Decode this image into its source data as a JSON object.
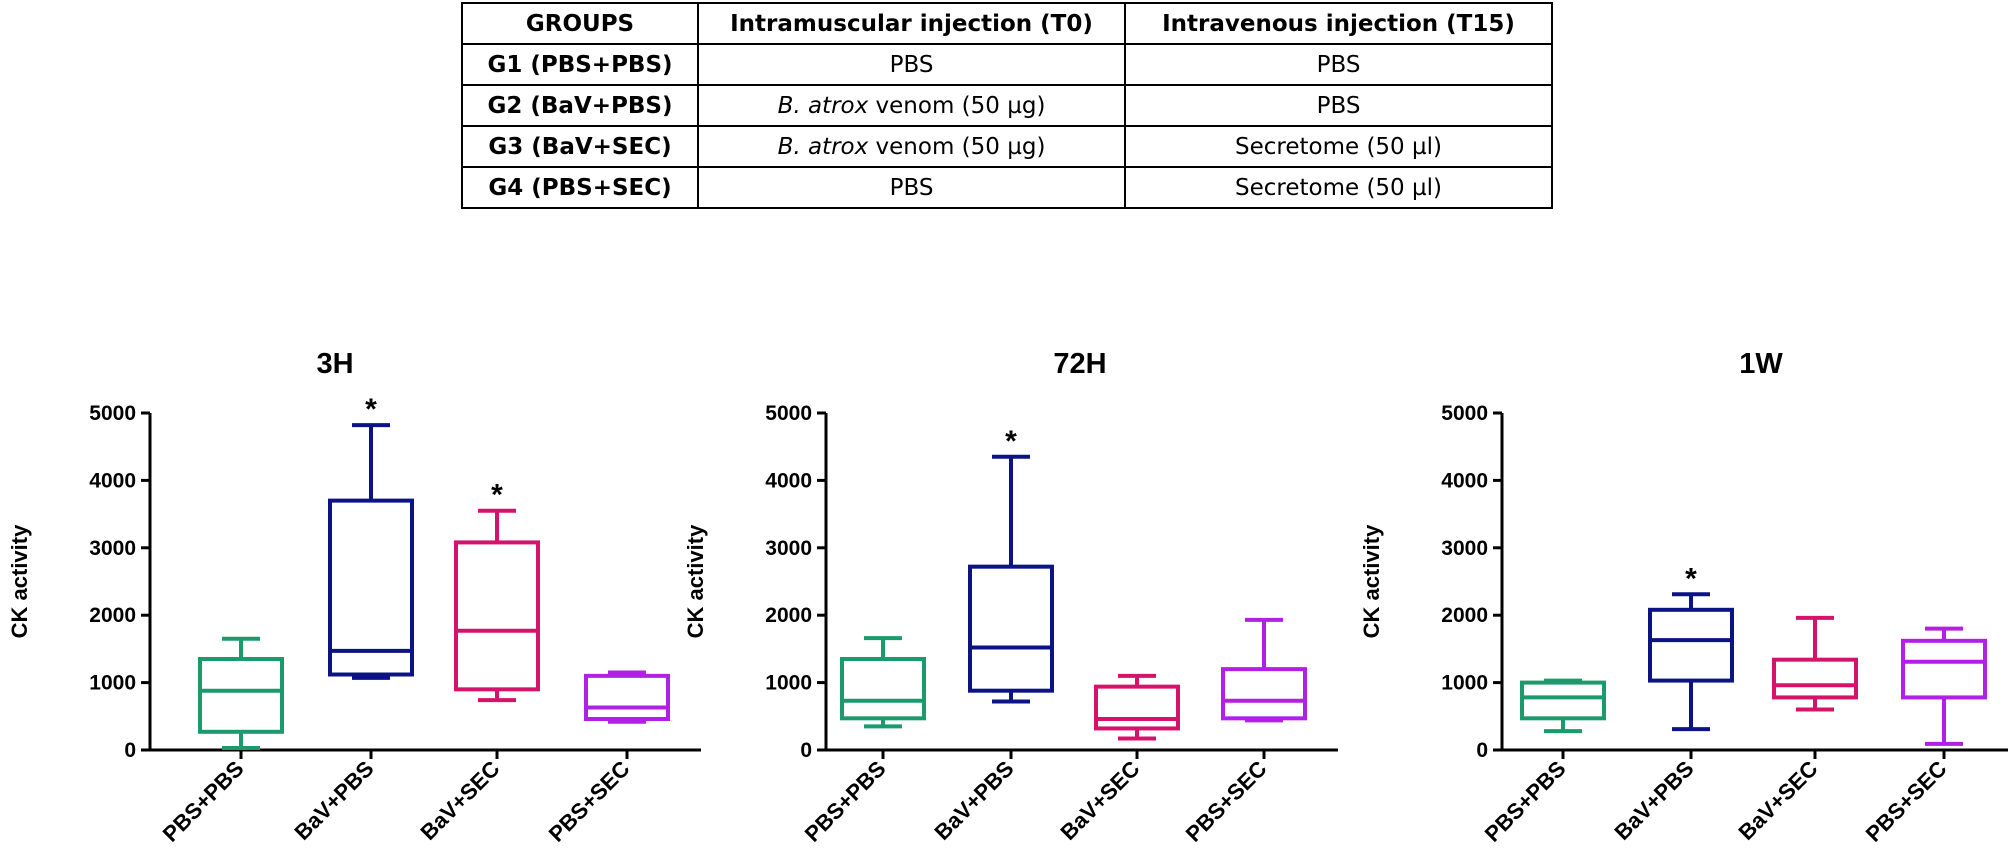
{
  "table": {
    "headers": [
      "GROUPS",
      "Intramuscular injection (T0)",
      "Intravenous injection (T15)"
    ],
    "rows": [
      {
        "group": "G1 (PBS+PBS)",
        "t0_italic": "",
        "t0_rest": "PBS",
        "t15": "PBS"
      },
      {
        "group": "G2 (BaV+PBS)",
        "t0_italic": "B. atrox",
        "t0_rest": " venom (50 µg)",
        "t15": "PBS"
      },
      {
        "group": "G3 (BaV+SEC)",
        "t0_italic": "B. atrox",
        "t0_rest": " venom (50 µg)",
        "t15": "Secretome (50 µl)"
      },
      {
        "group": "G4 (PBS+SEC)",
        "t0_italic": "",
        "t0_rest": "PBS",
        "t15": "Secretome (50 µl)"
      }
    ]
  },
  "colors": {
    "PBS+PBS": "#1b9a6c",
    "BaV+PBS": "#0b1385",
    "BaV+SEC": "#d6136b",
    "PBS+SEC": "#b21fe6"
  },
  "chart_data": [
    {
      "type": "box",
      "title": "3H",
      "ylabel": "CK activity",
      "ylim": [
        0,
        5000
      ],
      "yticks": [
        "0",
        "1000",
        "2000",
        "3000",
        "4000",
        "5000"
      ],
      "categories": [
        "PBS+PBS",
        "BaV+PBS",
        "BaV+SEC",
        "PBS+SEC"
      ],
      "boxes": [
        {
          "min": 30,
          "q1": 270,
          "median": 880,
          "q3": 1350,
          "max": 1650,
          "significant": false
        },
        {
          "min": 1070,
          "q1": 1120,
          "median": 1470,
          "q3": 3700,
          "max": 4820,
          "significant": true
        },
        {
          "min": 740,
          "q1": 900,
          "median": 1770,
          "q3": 3080,
          "max": 3550,
          "significant": true
        },
        {
          "min": 420,
          "q1": 460,
          "median": 630,
          "q3": 1100,
          "max": 1150,
          "significant": false
        }
      ],
      "significance_marker": "*"
    },
    {
      "type": "box",
      "title": "72H",
      "ylabel": "CK activity",
      "ylim": [
        0,
        5000
      ],
      "yticks": [
        "0",
        "1000",
        "2000",
        "3000",
        "4000",
        "5000"
      ],
      "categories": [
        "PBS+PBS",
        "BaV+PBS",
        "BaV+SEC",
        "PBS+SEC"
      ],
      "boxes": [
        {
          "min": 350,
          "q1": 470,
          "median": 730,
          "q3": 1350,
          "max": 1660,
          "significant": false
        },
        {
          "min": 720,
          "q1": 880,
          "median": 1520,
          "q3": 2720,
          "max": 4350,
          "significant": true
        },
        {
          "min": 170,
          "q1": 320,
          "median": 460,
          "q3": 940,
          "max": 1100,
          "significant": false
        },
        {
          "min": 440,
          "q1": 470,
          "median": 730,
          "q3": 1200,
          "max": 1930,
          "significant": false
        }
      ],
      "significance_marker": "*"
    },
    {
      "type": "box",
      "title": "1W",
      "ylabel": "CK activity",
      "ylim": [
        0,
        5000
      ],
      "yticks": [
        "0",
        "1000",
        "2000",
        "3000",
        "4000",
        "5000"
      ],
      "categories": [
        "PBS+PBS",
        "BaV+PBS",
        "BaV+SEC",
        "PBS+SEC"
      ],
      "boxes": [
        {
          "min": 280,
          "q1": 470,
          "median": 780,
          "q3": 1000,
          "max": 1030,
          "significant": false
        },
        {
          "min": 310,
          "q1": 1030,
          "median": 1630,
          "q3": 2080,
          "max": 2310,
          "significant": true
        },
        {
          "min": 600,
          "q1": 780,
          "median": 960,
          "q3": 1340,
          "max": 1960,
          "significant": false
        },
        {
          "min": 90,
          "q1": 780,
          "median": 1310,
          "q3": 1620,
          "max": 1800,
          "significant": false
        }
      ],
      "significance_marker": "*"
    }
  ]
}
